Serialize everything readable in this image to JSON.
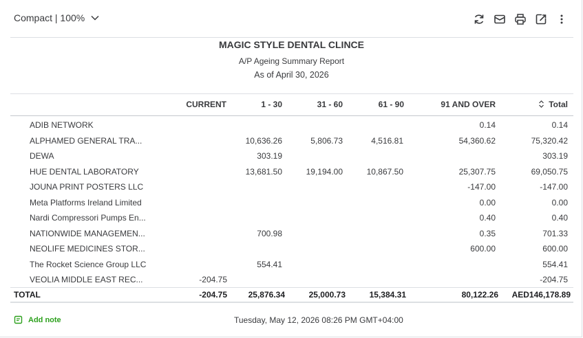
{
  "toolbar": {
    "view_label": "Compact | 100%",
    "icons": [
      "refresh-icon",
      "email-icon",
      "print-icon",
      "export-icon",
      "more-vert-icon"
    ]
  },
  "report": {
    "company": "MAGIC STYLE DENTAL CLINCE",
    "title": "A/P Ageing Summary Report",
    "as_of": "As of April 30, 2026"
  },
  "columns": [
    "CURRENT",
    "1 - 30",
    "31 - 60",
    "61 - 90",
    "91 AND OVER",
    "Total"
  ],
  "rows": [
    {
      "name": "ADIB NETWORK",
      "current": "",
      "d1_30": "",
      "d31_60": "",
      "d61_90": "",
      "d91_over": "0.14",
      "total": "0.14"
    },
    {
      "name": "ALPHAMED GENERAL TRA...",
      "current": "",
      "d1_30": "10,636.26",
      "d31_60": "5,806.73",
      "d61_90": "4,516.81",
      "d91_over": "54,360.62",
      "total": "75,320.42"
    },
    {
      "name": "DEWA",
      "current": "",
      "d1_30": "303.19",
      "d31_60": "",
      "d61_90": "",
      "d91_over": "",
      "total": "303.19"
    },
    {
      "name": "HUE DENTAL LABORATORY",
      "current": "",
      "d1_30": "13,681.50",
      "d31_60": "19,194.00",
      "d61_90": "10,867.50",
      "d91_over": "25,307.75",
      "total": "69,050.75"
    },
    {
      "name": "JOUNA PRINT POSTERS LLC",
      "current": "",
      "d1_30": "",
      "d31_60": "",
      "d61_90": "",
      "d91_over": "-147.00",
      "total": "-147.00"
    },
    {
      "name": "Meta Platforms Ireland Limited",
      "current": "",
      "d1_30": "",
      "d31_60": "",
      "d61_90": "",
      "d91_over": "0.00",
      "total": "0.00"
    },
    {
      "name": "Nardi Compressori Pumps En...",
      "current": "",
      "d1_30": "",
      "d31_60": "",
      "d61_90": "",
      "d91_over": "0.40",
      "total": "0.40"
    },
    {
      "name": "NATIONWIDE MANAGEMEN...",
      "current": "",
      "d1_30": "700.98",
      "d31_60": "",
      "d61_90": "",
      "d91_over": "0.35",
      "total": "701.33"
    },
    {
      "name": "NEOLIFE MEDICINES STOR...",
      "current": "",
      "d1_30": "",
      "d31_60": "",
      "d61_90": "",
      "d91_over": "600.00",
      "total": "600.00"
    },
    {
      "name": "The Rocket Science Group LLC",
      "current": "",
      "d1_30": "554.41",
      "d31_60": "",
      "d61_90": "",
      "d91_over": "",
      "total": "554.41"
    },
    {
      "name": "VEOLIA MIDDLE EAST REC...",
      "current": "-204.75",
      "d1_30": "",
      "d31_60": "",
      "d61_90": "",
      "d91_over": "",
      "total": "-204.75"
    }
  ],
  "total": {
    "label": "TOTAL",
    "current": "-204.75",
    "d1_30": "25,876.34",
    "d31_60": "25,000.73",
    "d61_90": "15,384.31",
    "d91_over": "80,122.26",
    "total": "AED146,178.89"
  },
  "footer": {
    "add_note": "Add note",
    "timestamp": "Tuesday, May 12, 2026 08:26 PM GMT+04:00"
  },
  "colors": {
    "accent_green": "#2ca01c",
    "text": "#393a3d",
    "divider": "#dcdfe3"
  }
}
